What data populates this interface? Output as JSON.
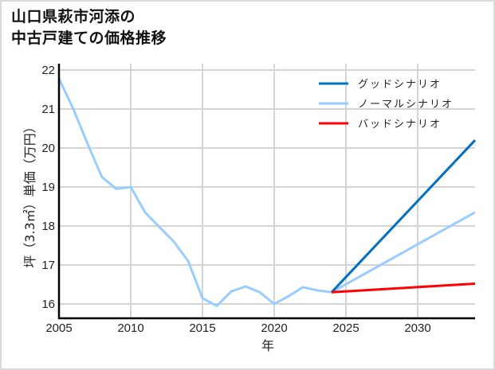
{
  "title_lines": [
    "山口県萩市河添の",
    "中古戸建ての価格推移"
  ],
  "chart_data": {
    "type": "line",
    "title": "山口県萩市河添の中古戸建ての価格推移",
    "xlabel": "年",
    "ylabel": "坪（3.3㎡）単価（万円）",
    "xlim": [
      2005,
      2034
    ],
    "ylim": [
      15.63,
      22.1
    ],
    "x_ticks": [
      2005,
      2010,
      2015,
      2020,
      2025,
      2030
    ],
    "y_ticks": [
      16,
      17,
      18,
      19,
      20,
      21,
      22
    ],
    "grid": true,
    "legend_position": "upper right",
    "series": [
      {
        "name": "ノーマルシナリオ",
        "color": "#99ccff",
        "role": "historical",
        "x": [
          2005,
          2006,
          2007,
          2008,
          2009,
          2010,
          2011,
          2012,
          2013,
          2014,
          2015,
          2016,
          2017,
          2018,
          2019,
          2020,
          2021,
          2022,
          2023,
          2024
        ],
        "values": [
          21.78,
          21.0,
          20.1,
          19.25,
          18.95,
          19.0,
          18.35,
          17.97,
          17.6,
          17.1,
          16.15,
          15.95,
          16.32,
          16.45,
          16.3,
          16.0,
          16.2,
          16.43,
          16.35,
          16.3
        ]
      },
      {
        "name": "グッドシナリオ",
        "color": "#0070c0",
        "role": "projection",
        "x": [
          2024,
          2034
        ],
        "values": [
          16.3,
          20.2
        ]
      },
      {
        "name": "ノーマルシナリオ",
        "color": "#99ccff",
        "role": "projection",
        "x": [
          2024,
          2034
        ],
        "values": [
          16.3,
          18.35
        ]
      },
      {
        "name": "バッドシナリオ",
        "color": "#ff0000",
        "role": "projection",
        "x": [
          2024,
          2034
        ],
        "values": [
          16.3,
          16.52
        ]
      }
    ],
    "legend": [
      {
        "label": "グッドシナリオ",
        "color": "#0070c0"
      },
      {
        "label": "ノーマルシナリオ",
        "color": "#99ccff"
      },
      {
        "label": "バッドシナリオ",
        "color": "#ff0000"
      }
    ]
  }
}
